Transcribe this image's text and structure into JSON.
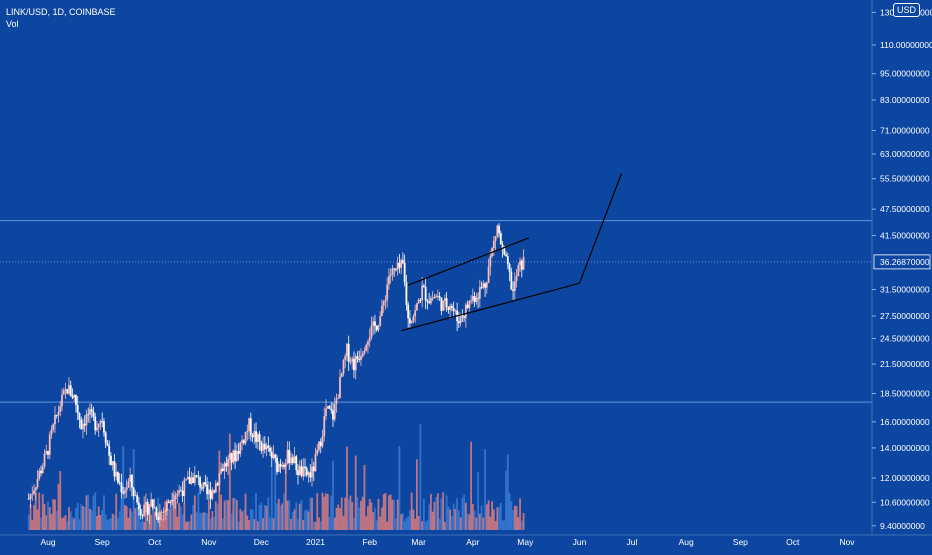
{
  "chart_data": {
    "type": "candlestick",
    "symbol_line": "LINK/USD, 1D, COINBASE",
    "volume_label": "Vol",
    "currency_badge": "USD",
    "y_axis": {
      "scale": "log",
      "ticks": [
        "130.00000000",
        "110.00000000",
        "95.00000000",
        "83.00000000",
        "71.00000000",
        "63.00000000",
        "55.50000000",
        "47.50000000",
        "41.50000000",
        "31.50000000",
        "27.50000000",
        "24.50000000",
        "21.50000000",
        "18.50000000",
        "16.00000000",
        "14.00000000",
        "12.00000000",
        "10.60000000",
        "9.40000000"
      ],
      "tick_values": [
        130,
        110,
        95,
        83,
        71,
        63,
        55.5,
        47.5,
        41.5,
        31.5,
        27.5,
        24.5,
        21.5,
        18.5,
        16,
        14,
        12,
        10.6,
        9.4
      ],
      "range": [
        9.2,
        135
      ]
    },
    "current_price": 36.2687,
    "current_price_label": "36.26870000",
    "horizontal_levels": [
      44.8,
      36.2687,
      17.7
    ],
    "x_axis": {
      "ticks": [
        "Aug",
        "Sep",
        "Oct",
        "Nov",
        "Dec",
        "2021",
        "Feb",
        "Mar",
        "Apr",
        "May",
        "Jun",
        "Jul",
        "Aug",
        "Sep",
        "Oct",
        "Nov"
      ]
    },
    "price_path": [
      [
        "2020-07-21",
        10.8
      ],
      [
        "2020-07-26",
        12.0
      ],
      [
        "2020-07-31",
        13.5
      ],
      [
        "2020-08-04",
        15.5
      ],
      [
        "2020-08-08",
        17.5
      ],
      [
        "2020-08-12",
        19.0
      ],
      [
        "2020-08-16",
        18.2
      ],
      [
        "2020-08-20",
        15.8
      ],
      [
        "2020-08-24",
        16.6
      ],
      [
        "2020-08-28",
        15.9
      ],
      [
        "2020-09-01",
        16.3
      ],
      [
        "2020-09-05",
        13.5
      ],
      [
        "2020-09-09",
        12.0
      ],
      [
        "2020-09-13",
        11.3
      ],
      [
        "2020-09-17",
        11.8
      ],
      [
        "2020-09-21",
        10.6
      ],
      [
        "2020-09-25",
        10.1
      ],
      [
        "2020-09-29",
        10.6
      ],
      [
        "2020-10-03",
        10.0
      ],
      [
        "2020-10-07",
        10.2
      ],
      [
        "2020-10-11",
        11.1
      ],
      [
        "2020-10-15",
        11.2
      ],
      [
        "2020-10-19",
        11.6
      ],
      [
        "2020-10-23",
        12.1
      ],
      [
        "2020-10-27",
        11.7
      ],
      [
        "2020-10-31",
        11.0
      ],
      [
        "2020-11-04",
        11.4
      ],
      [
        "2020-11-08",
        12.6
      ],
      [
        "2020-11-12",
        13.0
      ],
      [
        "2020-11-16",
        13.5
      ],
      [
        "2020-11-20",
        14.5
      ],
      [
        "2020-11-24",
        15.7
      ],
      [
        "2020-11-28",
        14.7
      ],
      [
        "2020-12-02",
        14.0
      ],
      [
        "2020-12-06",
        13.6
      ],
      [
        "2020-12-10",
        12.8
      ],
      [
        "2020-12-14",
        13.2
      ],
      [
        "2020-12-18",
        13.5
      ],
      [
        "2020-12-22",
        12.5
      ],
      [
        "2020-12-26",
        12.2
      ],
      [
        "2020-12-30",
        12.3
      ],
      [
        "2021-01-03",
        14.0
      ],
      [
        "2021-01-07",
        17.0
      ],
      [
        "2021-01-11",
        16.5
      ],
      [
        "2021-01-15",
        19.5
      ],
      [
        "2021-01-19",
        23.0
      ],
      [
        "2021-01-23",
        21.5
      ],
      [
        "2021-01-27",
        23.0
      ],
      [
        "2021-01-31",
        25.0
      ],
      [
        "2021-02-04",
        26.0
      ],
      [
        "2021-02-08",
        28.0
      ],
      [
        "2021-02-12",
        34.0
      ],
      [
        "2021-02-16",
        34.5
      ],
      [
        "2021-02-20",
        35.5
      ],
      [
        "2021-02-23",
        27.0
      ],
      [
        "2021-02-27",
        28.0
      ],
      [
        "2021-03-03",
        31.5
      ],
      [
        "2021-03-07",
        30.0
      ],
      [
        "2021-03-11",
        30.5
      ],
      [
        "2021-03-15",
        29.0
      ],
      [
        "2021-03-19",
        29.5
      ],
      [
        "2021-03-23",
        27.0
      ],
      [
        "2021-03-27",
        28.0
      ],
      [
        "2021-03-31",
        30.0
      ],
      [
        "2021-04-04",
        31.0
      ],
      [
        "2021-04-08",
        32.5
      ],
      [
        "2021-04-12",
        38.5
      ],
      [
        "2021-04-15",
        43.5
      ],
      [
        "2021-04-18",
        38.0
      ],
      [
        "2021-04-21",
        35.0
      ],
      [
        "2021-04-24",
        31.0
      ],
      [
        "2021-04-27",
        35.0
      ],
      [
        "2021-04-30",
        36.3
      ]
    ],
    "volume_profile": "low relative volume with spikes in Aug 2020, Jan 2021, Feb 2021 and Apr 2021",
    "drawings": {
      "channel_upper": [
        [
          "2021-02-23",
          32.2
        ],
        [
          "2021-05-03",
          41.0
        ]
      ],
      "channel_lower": [
        [
          "2021-02-19",
          25.5
        ],
        [
          "2021-06-01",
          32.5
        ]
      ],
      "projection": [
        [
          "2021-06-01",
          32.5
        ],
        [
          "2021-06-25",
          57.0
        ]
      ]
    },
    "colors": {
      "background": "#0d46a0",
      "up": "#f7bcbc",
      "down": "#ffffff",
      "volume_up": "#e07d7d",
      "volume_down": "#3a7bd5",
      "level_line": "#7aa9e8",
      "drawing": "#000000",
      "axis_text": "#ffffff"
    }
  }
}
